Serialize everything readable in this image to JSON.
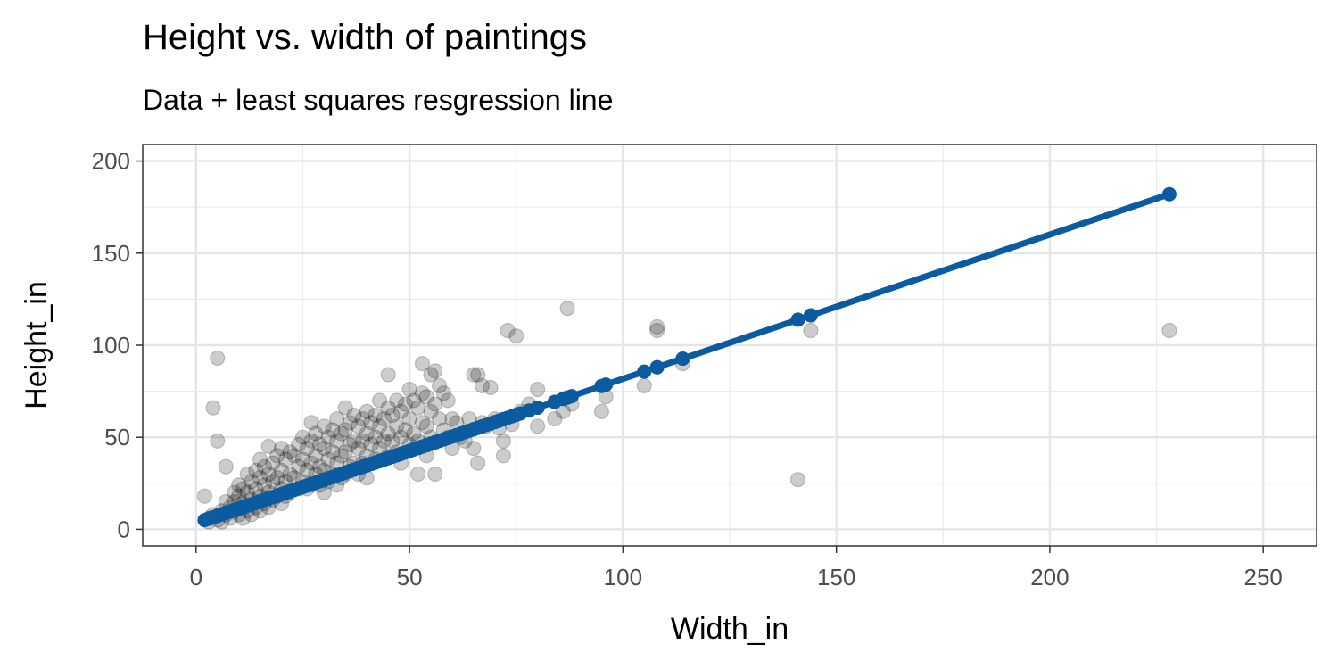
{
  "chart_data": {
    "type": "scatter",
    "title": "Height vs. width of paintings",
    "subtitle": "Data + least squares resgression line",
    "xlabel": "Width_in",
    "ylabel": "Height_in",
    "xlim": [
      -12.5,
      262.5
    ],
    "ylim": [
      -9,
      209
    ],
    "x_ticks": [
      0,
      50,
      100,
      150,
      200,
      250
    ],
    "y_ticks": [
      0,
      50,
      100,
      150,
      200
    ],
    "grid": true,
    "legend": "none",
    "colors": {
      "points": "#000000",
      "line": "#0b5ba1"
    },
    "regression": {
      "x_start": 2,
      "y_start": 5,
      "x_end": 228,
      "y_end": 182
    },
    "points": [
      [
        2,
        18
      ],
      [
        3,
        6
      ],
      [
        3,
        4
      ],
      [
        4,
        66
      ],
      [
        4,
        8
      ],
      [
        5,
        93
      ],
      [
        5,
        48
      ],
      [
        5,
        5
      ],
      [
        6,
        10
      ],
      [
        6,
        4
      ],
      [
        7,
        34
      ],
      [
        7,
        15
      ],
      [
        7,
        8
      ],
      [
        8,
        12
      ],
      [
        8,
        6
      ],
      [
        9,
        20
      ],
      [
        9,
        15
      ],
      [
        9,
        10
      ],
      [
        10,
        24
      ],
      [
        10,
        18
      ],
      [
        10,
        8
      ],
      [
        11,
        22
      ],
      [
        11,
        14
      ],
      [
        11,
        6
      ],
      [
        12,
        30
      ],
      [
        12,
        20
      ],
      [
        12,
        10
      ],
      [
        13,
        26
      ],
      [
        13,
        16
      ],
      [
        13,
        8
      ],
      [
        14,
        32
      ],
      [
        14,
        22
      ],
      [
        14,
        12
      ],
      [
        15,
        38
      ],
      [
        15,
        28
      ],
      [
        15,
        18
      ],
      [
        15,
        10
      ],
      [
        16,
        34
      ],
      [
        16,
        24
      ],
      [
        16,
        14
      ],
      [
        17,
        45
      ],
      [
        17,
        30
      ],
      [
        17,
        20
      ],
      [
        17,
        12
      ],
      [
        18,
        36
      ],
      [
        18,
        26
      ],
      [
        18,
        16
      ],
      [
        19,
        40
      ],
      [
        19,
        28
      ],
      [
        19,
        18
      ],
      [
        20,
        44
      ],
      [
        20,
        32
      ],
      [
        20,
        22
      ],
      [
        20,
        14
      ],
      [
        21,
        38
      ],
      [
        21,
        26
      ],
      [
        21,
        18
      ],
      [
        22,
        42
      ],
      [
        22,
        30
      ],
      [
        22,
        20
      ],
      [
        23,
        40
      ],
      [
        23,
        28
      ],
      [
        24,
        46
      ],
      [
        24,
        34
      ],
      [
        24,
        22
      ],
      [
        25,
        50
      ],
      [
        25,
        38
      ],
      [
        25,
        26
      ],
      [
        26,
        44
      ],
      [
        26,
        32
      ],
      [
        26,
        22
      ],
      [
        27,
        58
      ],
      [
        27,
        48
      ],
      [
        27,
        36
      ],
      [
        27,
        24
      ],
      [
        28,
        52
      ],
      [
        28,
        40
      ],
      [
        28,
        30
      ],
      [
        29,
        46
      ],
      [
        29,
        34
      ],
      [
        29,
        24
      ],
      [
        30,
        56
      ],
      [
        30,
        44
      ],
      [
        30,
        32
      ],
      [
        30,
        20
      ],
      [
        31,
        50
      ],
      [
        31,
        38
      ],
      [
        31,
        26
      ],
      [
        32,
        54
      ],
      [
        32,
        42
      ],
      [
        32,
        30
      ],
      [
        33,
        60
      ],
      [
        33,
        48
      ],
      [
        33,
        36
      ],
      [
        33,
        24
      ],
      [
        34,
        52
      ],
      [
        34,
        40
      ],
      [
        34,
        28
      ],
      [
        35,
        66
      ],
      [
        35,
        54
      ],
      [
        35,
        42
      ],
      [
        35,
        30
      ],
      [
        36,
        58
      ],
      [
        36,
        46
      ],
      [
        36,
        34
      ],
      [
        37,
        62
      ],
      [
        37,
        48
      ],
      [
        37,
        36
      ],
      [
        38,
        56
      ],
      [
        38,
        44
      ],
      [
        38,
        30
      ],
      [
        39,
        60
      ],
      [
        39,
        48
      ],
      [
        39,
        36
      ],
      [
        40,
        64
      ],
      [
        40,
        52
      ],
      [
        40,
        40
      ],
      [
        40,
        28
      ],
      [
        41,
        58
      ],
      [
        41,
        46
      ],
      [
        42,
        62
      ],
      [
        42,
        50
      ],
      [
        42,
        38
      ],
      [
        43,
        70
      ],
      [
        43,
        56
      ],
      [
        43,
        44
      ],
      [
        44,
        60
      ],
      [
        44,
        48
      ],
      [
        45,
        84
      ],
      [
        45,
        66
      ],
      [
        45,
        52
      ],
      [
        45,
        40
      ],
      [
        46,
        62
      ],
      [
        46,
        48
      ],
      [
        47,
        70
      ],
      [
        47,
        56
      ],
      [
        47,
        42
      ],
      [
        48,
        64
      ],
      [
        48,
        50
      ],
      [
        48,
        36
      ],
      [
        49,
        68
      ],
      [
        49,
        54
      ],
      [
        50,
        76
      ],
      [
        50,
        60
      ],
      [
        50,
        46
      ],
      [
        51,
        70
      ],
      [
        51,
        52
      ],
      [
        52,
        66
      ],
      [
        52,
        48
      ],
      [
        52,
        30
      ],
      [
        53,
        90
      ],
      [
        53,
        74
      ],
      [
        53,
        58
      ],
      [
        54,
        72
      ],
      [
        54,
        56
      ],
      [
        54,
        40
      ],
      [
        55,
        84
      ],
      [
        55,
        64
      ],
      [
        55,
        50
      ],
      [
        56,
        86
      ],
      [
        56,
        68
      ],
      [
        56,
        30
      ],
      [
        57,
        78
      ],
      [
        57,
        60
      ],
      [
        58,
        74
      ],
      [
        58,
        54
      ],
      [
        59,
        70
      ],
      [
        59,
        50
      ],
      [
        60,
        60
      ],
      [
        60,
        44
      ],
      [
        61,
        58
      ],
      [
        62,
        50
      ],
      [
        63,
        48
      ],
      [
        64,
        60
      ],
      [
        65,
        84
      ],
      [
        65,
        44
      ],
      [
        66,
        84
      ],
      [
        66,
        36
      ],
      [
        67,
        78
      ],
      [
        67,
        58
      ],
      [
        68,
        56
      ],
      [
        69,
        77
      ],
      [
        70,
        60
      ],
      [
        71,
        55
      ],
      [
        72,
        48
      ],
      [
        72,
        40
      ],
      [
        73,
        108
      ],
      [
        74,
        57
      ],
      [
        75,
        105
      ],
      [
        76,
        64
      ],
      [
        78,
        68
      ],
      [
        80,
        76
      ],
      [
        80,
        56
      ],
      [
        84,
        60
      ],
      [
        86,
        64
      ],
      [
        87,
        120
      ],
      [
        88,
        68
      ],
      [
        95,
        64
      ],
      [
        96,
        72
      ],
      [
        105,
        78
      ],
      [
        108,
        110
      ],
      [
        108,
        108
      ],
      [
        114,
        90
      ],
      [
        141,
        27
      ],
      [
        144,
        108
      ],
      [
        228,
        108
      ]
    ]
  }
}
